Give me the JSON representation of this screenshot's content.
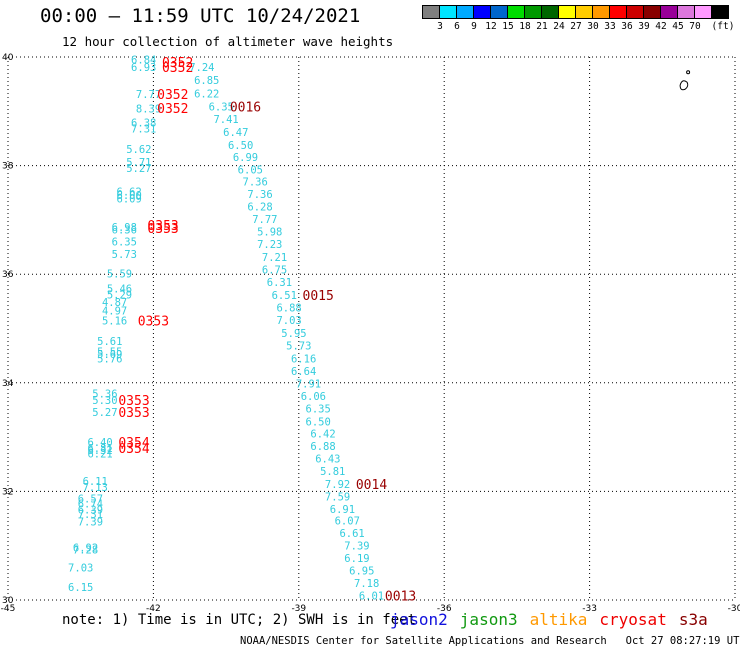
{
  "header": {
    "title": "00:00 – 11:59 UTC 10/24/2021",
    "subtitle": "12 hour collection of altimeter wave heights"
  },
  "colorbar": {
    "unit_label": "(ft)",
    "colors": [
      "#7f7f7f",
      "#00e5ff",
      "#00aaff",
      "#0000ff",
      "#0066cc",
      "#00dd00",
      "#009900",
      "#006600",
      "#ffff00",
      "#ffcc00",
      "#ff9900",
      "#ff0000",
      "#cc0000",
      "#880000",
      "#990099",
      "#dd77dd",
      "#ff99ff",
      "#000000"
    ],
    "labels": [
      "3",
      "6",
      "9",
      "12",
      "15",
      "18",
      "21",
      "24",
      "27",
      "30",
      "33",
      "36",
      "39",
      "42",
      "45",
      "70"
    ]
  },
  "map": {
    "lon_range": [
      -45,
      -30
    ],
    "lat_range": [
      30,
      40
    ],
    "lon_ticks": [
      "-45",
      "-42",
      "-39",
      "-36",
      "-33",
      "-30"
    ],
    "lat_ticks": [
      "40",
      "38",
      "36",
      "34",
      "32",
      "30"
    ],
    "grid_style": "dotted"
  },
  "swh_labels": [
    {
      "text": "6.84",
      "color": "#33ccdd",
      "lon": -42.2,
      "lat": 39.95
    },
    {
      "text": "6.93",
      "color": "#33ccdd",
      "lon": -42.2,
      "lat": 39.82
    },
    {
      "text": "7.24",
      "color": "#33ccdd",
      "lon": -41.0,
      "lat": 39.82
    },
    {
      "text": "6.85",
      "color": "#33ccdd",
      "lon": -40.9,
      "lat": 39.58
    },
    {
      "text": "6.22",
      "color": "#33ccdd",
      "lon": -40.9,
      "lat": 39.33
    },
    {
      "text": "7.77",
      "color": "#33ccdd",
      "lon": -42.1,
      "lat": 39.32
    },
    {
      "text": "6.35",
      "color": "#33ccdd",
      "lon": -40.6,
      "lat": 39.09
    },
    {
      "text": "8.39",
      "color": "#33ccdd",
      "lon": -42.1,
      "lat": 39.05
    },
    {
      "text": "7.41",
      "color": "#33ccdd",
      "lon": -40.5,
      "lat": 38.86
    },
    {
      "text": "6.38",
      "color": "#33ccdd",
      "lon": -42.2,
      "lat": 38.79
    },
    {
      "text": "7.31",
      "color": "#33ccdd",
      "lon": -42.2,
      "lat": 38.68
    },
    {
      "text": "6.47",
      "color": "#33ccdd",
      "lon": -40.3,
      "lat": 38.62
    },
    {
      "text": "6.50",
      "color": "#33ccdd",
      "lon": -40.2,
      "lat": 38.38
    },
    {
      "text": "5.62",
      "color": "#33ccdd",
      "lon": -42.3,
      "lat": 38.31
    },
    {
      "text": "6.99",
      "color": "#33ccdd",
      "lon": -40.1,
      "lat": 38.16
    },
    {
      "text": "5.71",
      "color": "#33ccdd",
      "lon": -42.3,
      "lat": 38.07
    },
    {
      "text": "5.27",
      "color": "#33ccdd",
      "lon": -42.3,
      "lat": 37.96
    },
    {
      "text": "6.05",
      "color": "#33ccdd",
      "lon": -40.0,
      "lat": 37.93
    },
    {
      "text": "7.36",
      "color": "#33ccdd",
      "lon": -39.9,
      "lat": 37.71
    },
    {
      "text": "6.62",
      "color": "#33ccdd",
      "lon": -42.5,
      "lat": 37.52
    },
    {
      "text": "6.00",
      "color": "#33ccdd",
      "lon": -42.5,
      "lat": 37.46
    },
    {
      "text": "7.36",
      "color": "#33ccdd",
      "lon": -39.8,
      "lat": 37.48
    },
    {
      "text": "6.09",
      "color": "#33ccdd",
      "lon": -42.5,
      "lat": 37.39
    },
    {
      "text": "6.28",
      "color": "#33ccdd",
      "lon": -39.8,
      "lat": 37.25
    },
    {
      "text": "7.77",
      "color": "#33ccdd",
      "lon": -39.7,
      "lat": 37.02
    },
    {
      "text": "6.98",
      "color": "#33ccdd",
      "lon": -42.6,
      "lat": 36.87
    },
    {
      "text": "6.36",
      "color": "#33ccdd",
      "lon": -42.6,
      "lat": 36.82
    },
    {
      "text": "5.98",
      "color": "#33ccdd",
      "lon": -39.6,
      "lat": 36.79
    },
    {
      "text": "6.35",
      "color": "#33ccdd",
      "lon": -42.6,
      "lat": 36.6
    },
    {
      "text": "7.23",
      "color": "#33ccdd",
      "lon": -39.6,
      "lat": 36.56
    },
    {
      "text": "5.73",
      "color": "#33ccdd",
      "lon": -42.6,
      "lat": 36.37
    },
    {
      "text": "7.21",
      "color": "#33ccdd",
      "lon": -39.5,
      "lat": 36.32
    },
    {
      "text": "6.75",
      "color": "#33ccdd",
      "lon": -39.5,
      "lat": 36.09
    },
    {
      "text": "5.59",
      "color": "#33ccdd",
      "lon": -42.7,
      "lat": 36.01
    },
    {
      "text": "6.31",
      "color": "#33ccdd",
      "lon": -39.4,
      "lat": 35.86
    },
    {
      "text": "5.46",
      "color": "#33ccdd",
      "lon": -42.7,
      "lat": 35.74
    },
    {
      "text": "5.29",
      "color": "#33ccdd",
      "lon": -42.7,
      "lat": 35.63
    },
    {
      "text": "6.51",
      "color": "#33ccdd",
      "lon": -39.3,
      "lat": 35.62
    },
    {
      "text": "4.87",
      "color": "#33ccdd",
      "lon": -42.8,
      "lat": 35.49
    },
    {
      "text": "6.88",
      "color": "#33ccdd",
      "lon": -39.2,
      "lat": 35.39
    },
    {
      "text": "4.97",
      "color": "#33ccdd",
      "lon": -42.8,
      "lat": 35.33
    },
    {
      "text": "5.16",
      "color": "#33ccdd",
      "lon": -42.8,
      "lat": 35.15
    },
    {
      "text": "7.03",
      "color": "#33ccdd",
      "lon": -39.2,
      "lat": 35.16
    },
    {
      "text": "5.95",
      "color": "#33ccdd",
      "lon": -39.1,
      "lat": 34.92
    },
    {
      "text": "5.61",
      "color": "#33ccdd",
      "lon": -42.9,
      "lat": 34.77
    },
    {
      "text": "5.73",
      "color": "#33ccdd",
      "lon": -39.0,
      "lat": 34.69
    },
    {
      "text": "5.55",
      "color": "#33ccdd",
      "lon": -42.9,
      "lat": 34.58
    },
    {
      "text": "5.69",
      "color": "#33ccdd",
      "lon": -42.9,
      "lat": 34.53
    },
    {
      "text": "5.76",
      "color": "#33ccdd",
      "lon": -42.9,
      "lat": 34.45
    },
    {
      "text": "6.16",
      "color": "#33ccdd",
      "lon": -38.9,
      "lat": 34.45
    },
    {
      "text": "6.64",
      "color": "#33ccdd",
      "lon": -38.9,
      "lat": 34.22
    },
    {
      "text": "7.91",
      "color": "#33ccdd",
      "lon": -38.8,
      "lat": 33.99
    },
    {
      "text": "5.36",
      "color": "#33ccdd",
      "lon": -43.0,
      "lat": 33.8
    },
    {
      "text": "6.06",
      "color": "#33ccdd",
      "lon": -38.7,
      "lat": 33.76
    },
    {
      "text": "5.30",
      "color": "#33ccdd",
      "lon": -43.0,
      "lat": 33.68
    },
    {
      "text": "6.35",
      "color": "#33ccdd",
      "lon": -38.6,
      "lat": 33.53
    },
    {
      "text": "5.27",
      "color": "#33ccdd",
      "lon": -43.0,
      "lat": 33.46
    },
    {
      "text": "6.50",
      "color": "#33ccdd",
      "lon": -38.6,
      "lat": 33.29
    },
    {
      "text": "6.42",
      "color": "#33ccdd",
      "lon": -38.5,
      "lat": 33.07
    },
    {
      "text": "6.40",
      "color": "#33ccdd",
      "lon": -43.1,
      "lat": 32.91
    },
    {
      "text": "6.88",
      "color": "#33ccdd",
      "lon": -38.5,
      "lat": 32.84
    },
    {
      "text": "6.81",
      "color": "#33ccdd",
      "lon": -43.1,
      "lat": 32.8
    },
    {
      "text": "6.32",
      "color": "#33ccdd",
      "lon": -43.1,
      "lat": 32.76
    },
    {
      "text": "6.21",
      "color": "#33ccdd",
      "lon": -43.1,
      "lat": 32.7
    },
    {
      "text": "6.43",
      "color": "#33ccdd",
      "lon": -38.4,
      "lat": 32.61
    },
    {
      "text": "5.81",
      "color": "#33ccdd",
      "lon": -38.3,
      "lat": 32.38
    },
    {
      "text": "6.11",
      "color": "#33ccdd",
      "lon": -43.2,
      "lat": 32.19
    },
    {
      "text": "7.92",
      "color": "#33ccdd",
      "lon": -38.2,
      "lat": 32.14
    },
    {
      "text": "7.13",
      "color": "#33ccdd",
      "lon": -43.2,
      "lat": 32.08
    },
    {
      "text": "7.59",
      "color": "#33ccdd",
      "lon": -38.2,
      "lat": 31.91
    },
    {
      "text": "6.57",
      "color": "#33ccdd",
      "lon": -43.3,
      "lat": 31.87
    },
    {
      "text": "6.74",
      "color": "#33ccdd",
      "lon": -43.3,
      "lat": 31.78
    },
    {
      "text": "6.91",
      "color": "#33ccdd",
      "lon": -38.1,
      "lat": 31.68
    },
    {
      "text": "6.39",
      "color": "#33ccdd",
      "lon": -43.3,
      "lat": 31.67
    },
    {
      "text": "7.31",
      "color": "#33ccdd",
      "lon": -43.3,
      "lat": 31.58
    },
    {
      "text": "6.07",
      "color": "#33ccdd",
      "lon": -38.0,
      "lat": 31.46
    },
    {
      "text": "7.39",
      "color": "#33ccdd",
      "lon": -43.3,
      "lat": 31.45
    },
    {
      "text": "6.61",
      "color": "#33ccdd",
      "lon": -37.9,
      "lat": 31.23
    },
    {
      "text": "7.39",
      "color": "#33ccdd",
      "lon": -37.8,
      "lat": 31.0
    },
    {
      "text": "6.92",
      "color": "#33ccdd",
      "lon": -43.4,
      "lat": 30.97
    },
    {
      "text": "7.28",
      "color": "#33ccdd",
      "lon": -43.4,
      "lat": 30.93
    },
    {
      "text": "6.19",
      "color": "#33ccdd",
      "lon": -37.8,
      "lat": 30.77
    },
    {
      "text": "7.03",
      "color": "#33ccdd",
      "lon": -43.5,
      "lat": 30.6
    },
    {
      "text": "6.95",
      "color": "#33ccdd",
      "lon": -37.7,
      "lat": 30.54
    },
    {
      "text": "7.18",
      "color": "#33ccdd",
      "lon": -37.6,
      "lat": 30.31
    },
    {
      "text": "6.15",
      "color": "#33ccdd",
      "lon": -43.5,
      "lat": 30.24
    },
    {
      "text": "6.01",
      "color": "#33ccdd",
      "lon": -37.5,
      "lat": 30.08
    }
  ],
  "time_labels": [
    {
      "text": "0352",
      "color": "#ff0000",
      "lon": -41.5,
      "lat": 39.91
    },
    {
      "text": "0352",
      "color": "#ff0000",
      "lon": -41.5,
      "lat": 39.82
    },
    {
      "text": "0352",
      "color": "#ff0000",
      "lon": -41.6,
      "lat": 39.32
    },
    {
      "text": "0352",
      "color": "#ff0000",
      "lon": -41.6,
      "lat": 39.06
    },
    {
      "text": "0016",
      "color": "#990000",
      "lon": -40.1,
      "lat": 39.09
    },
    {
      "text": "0353",
      "color": "#ff0000",
      "lon": -41.8,
      "lat": 36.91
    },
    {
      "text": "0353",
      "color": "#ff0000",
      "lon": -41.8,
      "lat": 36.85
    },
    {
      "text": "0015",
      "color": "#990000",
      "lon": -38.6,
      "lat": 35.62
    },
    {
      "text": "0353",
      "color": "#ff0000",
      "lon": -42.0,
      "lat": 35.15
    },
    {
      "text": "0353",
      "color": "#ff0000",
      "lon": -42.4,
      "lat": 33.68
    },
    {
      "text": "0353",
      "color": "#ff0000",
      "lon": -42.4,
      "lat": 33.46
    },
    {
      "text": "0354",
      "color": "#ff0000",
      "lon": -42.4,
      "lat": 32.91
    },
    {
      "text": "0354",
      "color": "#ff0000",
      "lon": -42.4,
      "lat": 32.8
    },
    {
      "text": "0014",
      "color": "#990000",
      "lon": -37.5,
      "lat": 32.14
    },
    {
      "text": "0013",
      "color": "#990000",
      "lon": -36.9,
      "lat": 30.08
    }
  ],
  "island_outline": {
    "lon": -31.05,
    "lat": 39.48
  },
  "notes": {
    "note_text": "note: 1) Time is in UTC; 2) SWH is in feet"
  },
  "satellites": [
    {
      "name": "jason2",
      "color": "#1111dd"
    },
    {
      "name": "jason3",
      "color": "#119911"
    },
    {
      "name": "altika",
      "color": "#ff9900"
    },
    {
      "name": "cryosat",
      "color": "#ee0000"
    },
    {
      "name": "s3a",
      "color": "#880000"
    }
  ],
  "footer": {
    "credit": "NOAA/NESDIS Center for Satellite Applications and Research",
    "timestamp": "Oct 27 08:27:19 UTC 2021"
  }
}
